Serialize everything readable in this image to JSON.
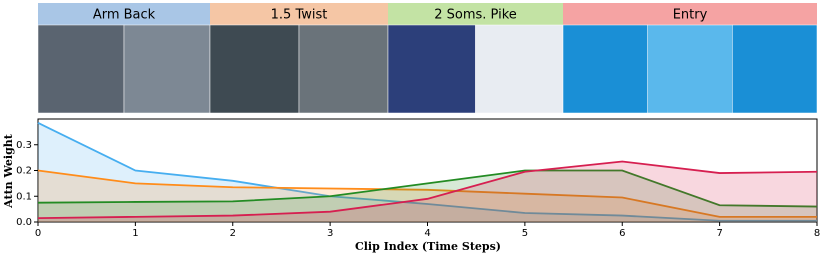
{
  "phases": [
    {
      "label": "Arm Back",
      "color": "#a9c6e6"
    },
    {
      "label": "1.5 Twist",
      "color": "#f5c6a5"
    },
    {
      "label": "2 Soms. Pike",
      "color": "#c3e3a4"
    },
    {
      "label": "Entry",
      "color": "#f5a3a3"
    }
  ],
  "chart_data": {
    "type": "line",
    "x_label": "Clip Index (Time Steps)",
    "y_label": "Attn Weight",
    "x": [
      0,
      1,
      2,
      3,
      4,
      5,
      6,
      7,
      8
    ],
    "xlim": [
      0,
      8
    ],
    "xticks": [
      0,
      1,
      2,
      3,
      4,
      5,
      6,
      7,
      8
    ],
    "ylim": [
      0,
      0.4
    ],
    "yticks": [
      {
        "value": 0,
        "label": "0.0"
      },
      0.1,
      0.2,
      0.3
    ],
    "fill": true,
    "series": [
      {
        "color": "#46aef0",
        "values": [
          0.385,
          0.2,
          0.16,
          0.1,
          0.07,
          0.035,
          0.025,
          0.005,
          0.005
        ]
      },
      {
        "color": "#ff8c1a",
        "values": [
          0.2,
          0.15,
          0.135,
          0.13,
          0.125,
          0.11,
          0.095,
          0.02,
          0.02
        ]
      },
      {
        "color": "#238b23",
        "values": [
          0.075,
          0.078,
          0.08,
          0.1,
          0.15,
          0.2,
          0.2,
          0.065,
          0.06
        ]
      },
      {
        "color": "#d61f50",
        "values": [
          0.015,
          0.02,
          0.025,
          0.04,
          0.09,
          0.195,
          0.235,
          0.19,
          0.195
        ]
      }
    ]
  }
}
